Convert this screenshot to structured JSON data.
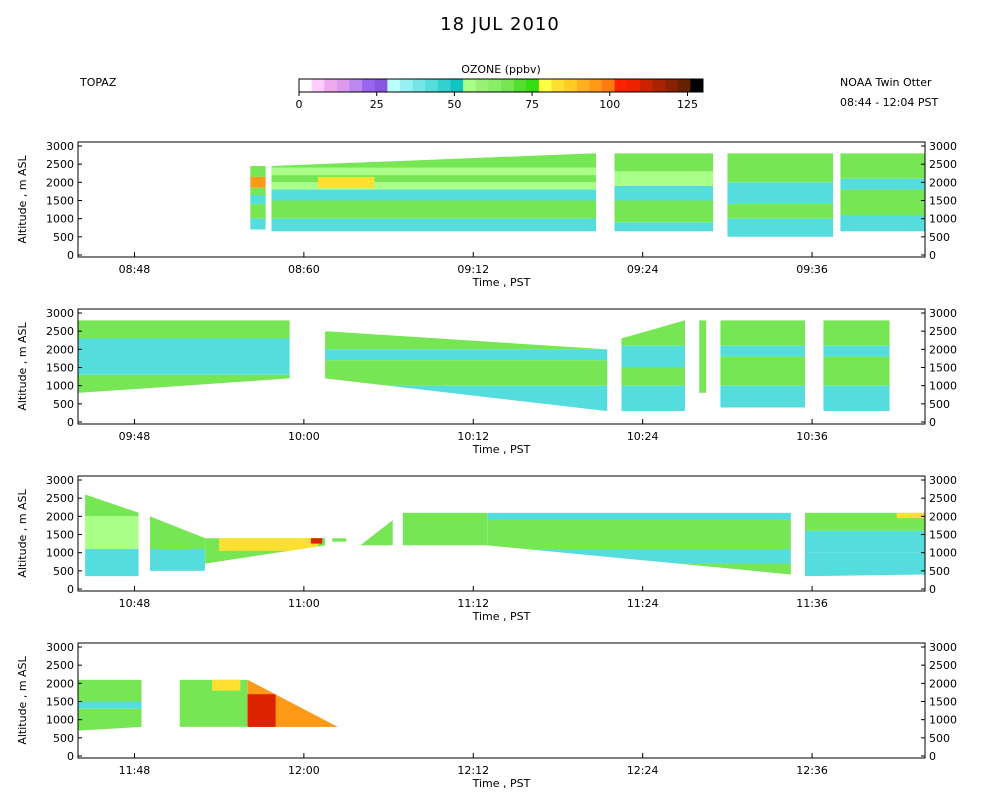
{
  "title": "18 JUL 2010",
  "left_label": "TOPAZ",
  "right_label": "NOAA Twin Otter",
  "time_range": "08:44 - 12:04 PST",
  "colorbar": {
    "title": "OZONE (ppbv)",
    "min": 0,
    "max": 130,
    "ticks": [
      "0",
      "25",
      "50",
      "75",
      "100",
      "125"
    ],
    "colors": [
      "#ffffff",
      "#ffccff",
      "#eeaaee",
      "#dd99ee",
      "#bb88ee",
      "#9966ee",
      "#8855dd",
      "#bbffff",
      "#99f0f0",
      "#77e6e6",
      "#55dcdc",
      "#33d0d0",
      "#11c4c4",
      "#aaff88",
      "#99f077",
      "#88ee66",
      "#77e655",
      "#55dd33",
      "#33dd11",
      "#ffff44",
      "#ffe030",
      "#ffcc22",
      "#ffb020",
      "#ff9918",
      "#ff7a10",
      "#ff2200",
      "#ee2200",
      "#cc2200",
      "#aa2200",
      "#882200",
      "#662200",
      "#000000"
    ]
  },
  "chart_data": {
    "type": "heatmap",
    "variable": "Ozone",
    "units": "ppbv",
    "xlabel": "Time , PST",
    "ylabel": "Altitude , m ASL",
    "ylim": [
      0,
      3000
    ],
    "yticks": [
      "0",
      "500",
      "1000",
      "1500",
      "2000",
      "2500",
      "3000"
    ],
    "panels": [
      {
        "xlim_min": [
          524,
          584
        ],
        "xticks": [
          "08:48",
          "08:60",
          "09:12",
          "09:24",
          "09:36"
        ],
        "xtick_min": [
          528,
          540,
          552,
          564,
          576
        ],
        "segments": [
          {
            "t": [
              536.2,
              537.3
            ],
            "top": [
              2450,
              2450
            ],
            "bot": [
              700,
              700
            ],
            "layers": [
              [
                2450,
                2150,
                "green"
              ],
              [
                2150,
                1850,
                "orange"
              ],
              [
                1850,
                1650,
                "green"
              ],
              [
                1650,
                1400,
                "cyan"
              ],
              [
                1400,
                1000,
                "green"
              ],
              [
                1000,
                700,
                "cyan"
              ]
            ]
          },
          {
            "t": [
              537.7,
              560.7
            ],
            "top": [
              2450,
              2800
            ],
            "bot": [
              650,
              650
            ],
            "layers": [
              [
                2800,
                2400,
                "green"
              ],
              [
                2400,
                2200,
                "lightgreen"
              ],
              [
                2200,
                2000,
                "green"
              ],
              [
                2000,
                1800,
                "lightgreen"
              ],
              [
                1800,
                1500,
                "cyan"
              ],
              [
                1500,
                1000,
                "green"
              ],
              [
                1000,
                650,
                "cyan"
              ]
            ],
            "patches": [
              [
                541,
                545,
                1850,
                2150,
                "yellow"
              ]
            ]
          },
          {
            "t": [
              562.0,
              569.0
            ],
            "top": [
              2800,
              2800
            ],
            "bot": [
              650,
              650
            ],
            "layers": [
              [
                2800,
                2300,
                "green"
              ],
              [
                2300,
                1900,
                "lightgreen"
              ],
              [
                1900,
                1500,
                "cyan"
              ],
              [
                1500,
                900,
                "green"
              ],
              [
                900,
                650,
                "cyan"
              ]
            ]
          },
          {
            "t": [
              570.0,
              577.5
            ],
            "top": [
              2800,
              2800
            ],
            "bot": [
              500,
              500
            ],
            "layers": [
              [
                2800,
                2000,
                "green"
              ],
              [
                2000,
                1400,
                "cyan"
              ],
              [
                1400,
                1000,
                "green"
              ],
              [
                1000,
                500,
                "cyan"
              ]
            ]
          },
          {
            "t": [
              578.0,
              584.0
            ],
            "top": [
              2800,
              2800
            ],
            "bot": [
              650,
              650
            ],
            "layers": [
              [
                2800,
                2100,
                "green"
              ],
              [
                2100,
                1800,
                "cyan"
              ],
              [
                1800,
                1100,
                "green"
              ],
              [
                1100,
                650,
                "cyan"
              ]
            ]
          }
        ]
      },
      {
        "xlim_min": [
          584,
          644
        ],
        "xticks": [
          "09:48",
          "10:00",
          "10:12",
          "10:24",
          "10:36"
        ],
        "xtick_min": [
          588,
          600,
          612,
          624,
          636
        ],
        "segments": [
          {
            "t": [
              584.0,
              599.0
            ],
            "top": [
              2800,
              2800
            ],
            "bot": [
              800,
              1200
            ],
            "layers": [
              [
                2800,
                2300,
                "green"
              ],
              [
                2300,
                1300,
                "cyan"
              ],
              [
                1300,
                800,
                "green"
              ]
            ]
          },
          {
            "t": [
              601.5,
              621.5
            ],
            "top": [
              2500,
              2000
            ],
            "bot": [
              1200,
              300
            ],
            "layers": [
              [
                2500,
                2000,
                "green"
              ],
              [
                2000,
                1700,
                "cyan"
              ],
              [
                1700,
                1000,
                "green"
              ],
              [
                1000,
                300,
                "cyan"
              ]
            ]
          },
          {
            "t": [
              622.5,
              627.0
            ],
            "top": [
              2300,
              2800
            ],
            "bot": [
              300,
              300
            ],
            "layers": [
              [
                2800,
                2100,
                "green"
              ],
              [
                2100,
                1500,
                "cyan"
              ],
              [
                1500,
                1000,
                "green"
              ],
              [
                1000,
                300,
                "cyan"
              ]
            ]
          },
          {
            "t": [
              628.0,
              628.5
            ],
            "top": [
              2800,
              2800
            ],
            "bot": [
              800,
              800
            ],
            "layers": [
              [
                2800,
                800,
                "green"
              ]
            ]
          },
          {
            "t": [
              629.5,
              635.5
            ],
            "top": [
              2800,
              2800
            ],
            "bot": [
              400,
              400
            ],
            "layers": [
              [
                2800,
                2100,
                "green"
              ],
              [
                2100,
                1800,
                "cyan"
              ],
              [
                1800,
                1000,
                "green"
              ],
              [
                1000,
                400,
                "cyan"
              ]
            ]
          },
          {
            "t": [
              636.8,
              641.5
            ],
            "top": [
              2800,
              2800
            ],
            "bot": [
              300,
              300
            ],
            "layers": [
              [
                2800,
                2100,
                "green"
              ],
              [
                2100,
                1800,
                "cyan"
              ],
              [
                1800,
                1000,
                "green"
              ],
              [
                1000,
                300,
                "cyan"
              ]
            ]
          }
        ]
      },
      {
        "xlim_min": [
          644,
          704
        ],
        "xticks": [
          "10:48",
          "11:00",
          "11:12",
          "11:24",
          "11:36"
        ],
        "xtick_min": [
          648,
          660,
          672,
          684,
          696
        ],
        "segments": [
          {
            "t": [
              644.5,
              648.3
            ],
            "top": [
              2600,
              2100
            ],
            "bot": [
              350,
              350
            ],
            "layers": [
              [
                2600,
                2000,
                "green"
              ],
              [
                2000,
                1100,
                "lightgreen"
              ],
              [
                1100,
                350,
                "cyan"
              ]
            ]
          },
          {
            "t": [
              649.1,
              653.0
            ],
            "top": [
              2000,
              1400
            ],
            "bot": [
              350,
              500
            ],
            "layers": [
              [
                2000,
                1100,
                "green"
              ],
              [
                1100,
                500,
                "cyan"
              ]
            ]
          },
          {
            "t": [
              653.0,
              661.5
            ],
            "top": [
              1400,
              1400
            ],
            "bot": [
              700,
              1200
            ],
            "layers": [
              [
                1400,
                700,
                "green"
              ]
            ],
            "patches": [
              [
                654,
                661,
                1050,
                1400,
                "yellow"
              ],
              [
                660.5,
                661.3,
                1250,
                1400,
                "red"
              ]
            ]
          },
          {
            "t": [
              662.0,
              663.0
            ],
            "top": [
              1400,
              1400
            ],
            "bot": [
              1300,
              1300
            ],
            "layers": [
              [
                1400,
                1300,
                "green"
              ]
            ]
          },
          {
            "t": [
              664.0,
              666.3
            ],
            "top": [
              1200,
              1900
            ],
            "bot": [
              1200,
              1200
            ],
            "layers": [
              [
                1900,
                1200,
                "green"
              ]
            ]
          },
          {
            "t": [
              667.0,
              673.0
            ],
            "top": [
              2100,
              2100
            ],
            "bot": [
              1200,
              1200
            ],
            "layers": [
              [
                2100,
                1200,
                "green"
              ]
            ]
          },
          {
            "t": [
              673.0,
              694.5
            ],
            "top": [
              2100,
              2100
            ],
            "bot": [
              1200,
              400
            ],
            "layers": [
              [
                2100,
                1900,
                "cyan"
              ],
              [
                1900,
                1100,
                "green"
              ],
              [
                1100,
                700,
                "cyan"
              ],
              [
                700,
                400,
                "green"
              ]
            ]
          },
          {
            "t": [
              695.5,
              704.0
            ],
            "top": [
              2100,
              2100
            ],
            "bot": [
              350,
              400
            ],
            "layers": [
              [
                2100,
                1600,
                "green"
              ],
              [
                1600,
                1000,
                "cyan"
              ],
              [
                1000,
                350,
                "cyan"
              ]
            ],
            "patches": [
              [
                702,
                704,
                1950,
                2100,
                "yellow"
              ]
            ]
          }
        ]
      },
      {
        "xlim_min": [
          704,
          764
        ],
        "xticks": [
          "11:48",
          "12:00",
          "12:12",
          "12:24",
          "12:36"
        ],
        "xtick_min": [
          708,
          720,
          732,
          744,
          756
        ],
        "segments": [
          {
            "t": [
              704.0,
              708.5
            ],
            "top": [
              2100,
              2100
            ],
            "bot": [
              700,
              800
            ],
            "layers": [
              [
                2100,
                1500,
                "green"
              ],
              [
                1500,
                1300,
                "cyan"
              ],
              [
                1300,
                700,
                "green"
              ]
            ]
          },
          {
            "t": [
              711.2,
              716.0
            ],
            "top": [
              2100,
              2100
            ],
            "bot": [
              800,
              800
            ],
            "layers": [
              [
                2100,
                800,
                "green"
              ]
            ],
            "patches": [
              [
                713.5,
                715.5,
                1800,
                2100,
                "yellow"
              ]
            ]
          },
          {
            "t": [
              716.0,
              722.4
            ],
            "top": [
              2100,
              800
            ],
            "bot": [
              800,
              700
            ],
            "layers": [
              [
                2100,
                800,
                "orange"
              ]
            ],
            "patches": [
              [
                716,
                718,
                800,
                1700,
                "red"
              ]
            ]
          }
        ]
      }
    ]
  }
}
